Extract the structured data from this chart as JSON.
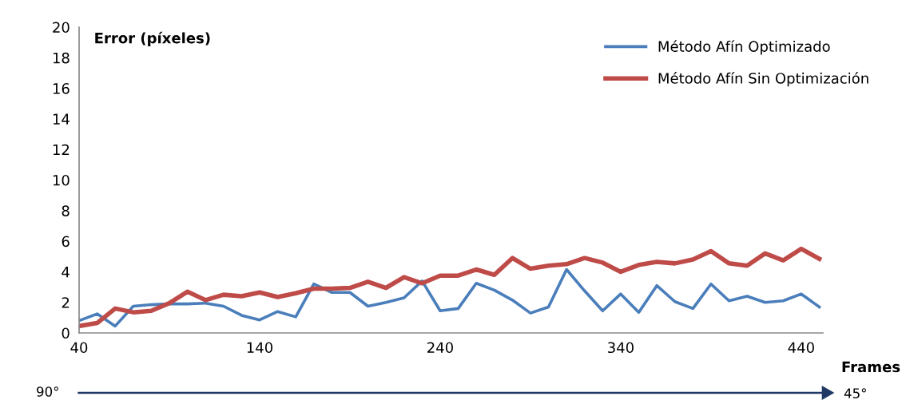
{
  "chart_data": {
    "type": "line",
    "ylabel": "Error (píxeles)",
    "xlabel": "Frames",
    "x": [
      40,
      50,
      60,
      70,
      80,
      90,
      100,
      110,
      120,
      130,
      140,
      150,
      160,
      170,
      180,
      190,
      200,
      210,
      220,
      230,
      240,
      250,
      260,
      270,
      280,
      290,
      300,
      310,
      320,
      330,
      340,
      350,
      360,
      370,
      380,
      390,
      400,
      410,
      420,
      430,
      440,
      450
    ],
    "series": [
      {
        "name": "Método Afín Optimizado",
        "color": "#4a7ebb",
        "values": [
          0.8,
          1.25,
          0.45,
          1.75,
          1.85,
          1.9,
          1.9,
          1.95,
          1.75,
          1.15,
          0.85,
          1.4,
          1.05,
          3.2,
          2.65,
          2.65,
          1.75,
          2.0,
          2.3,
          3.4,
          1.45,
          1.6,
          3.25,
          2.8,
          2.15,
          1.3,
          1.7,
          4.15,
          2.75,
          1.45,
          2.55,
          1.35,
          3.1,
          2.05,
          1.6,
          3.2,
          2.1,
          2.4,
          2.0,
          2.1,
          2.55,
          1.7
        ]
      },
      {
        "name": "Método Afín Sin Optimización",
        "color": "#be4b48",
        "values": [
          0.45,
          0.65,
          1.6,
          1.35,
          1.45,
          1.95,
          2.7,
          2.15,
          2.5,
          2.4,
          2.65,
          2.35,
          2.6,
          2.9,
          2.9,
          2.95,
          3.35,
          2.95,
          3.65,
          3.25,
          3.75,
          3.75,
          4.15,
          3.8,
          4.9,
          4.2,
          4.4,
          4.5,
          4.9,
          4.6,
          4.0,
          4.45,
          4.65,
          4.55,
          4.8,
          5.35,
          4.55,
          4.4,
          5.2,
          4.75,
          5.5,
          4.85
        ]
      }
    ],
    "xlim": [
      40,
      452
    ],
    "xticks": [
      40,
      140,
      240,
      340,
      440
    ],
    "ylim": [
      0,
      20
    ],
    "yticks": [
      0,
      2,
      4,
      6,
      8,
      10,
      12,
      14,
      16,
      18,
      20
    ],
    "grid": false,
    "legend": "top right",
    "marker": "none",
    "line_style": "solid",
    "annotations": [
      "90°",
      "45°"
    ]
  }
}
